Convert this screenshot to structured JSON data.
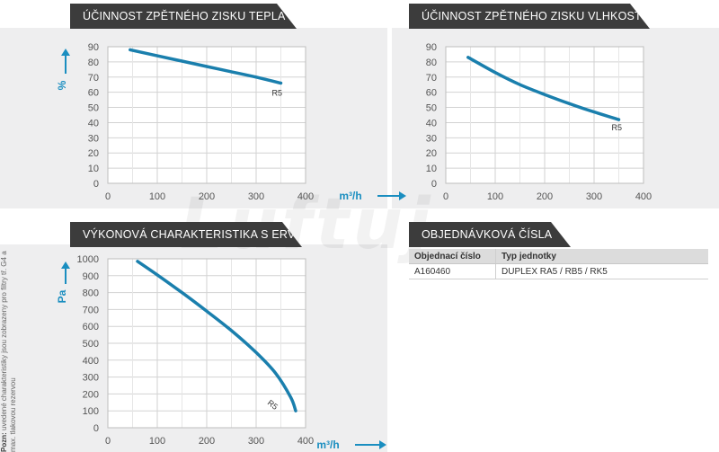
{
  "headers": {
    "heat": "ÚČINNOST ZPĚTNÉHO ZISKU TEPLA",
    "humidity": "ÚČINNOST ZPĚTNÉHO ZISKU VLHKOSTI",
    "performance": "VÝKONOVÁ CHARAKTERISTIKA S ERV",
    "order": "OBJEDNÁVKOVÁ ČÍSLA"
  },
  "watermark": "Luftuj",
  "colors": {
    "accent": "#1a8ec0",
    "header_bg": "#3c3c3c",
    "panel_bg": "#eeeeef",
    "curve": "#1a7fad"
  },
  "chart_data": [
    {
      "type": "line",
      "title": "ÚČINNOST ZPĚTNÉHO ZISKU TEPLA",
      "xlabel": "",
      "ylabel": "%",
      "xlim": [
        0,
        400
      ],
      "ylim": [
        0,
        90
      ],
      "xticks": [
        0,
        100,
        200,
        300,
        400
      ],
      "yticks": [
        0,
        10,
        20,
        30,
        40,
        50,
        60,
        70,
        80,
        90
      ],
      "grid": true,
      "series": [
        {
          "name": "R5",
          "x": [
            45,
            100,
            150,
            200,
            250,
            300,
            350
          ],
          "y": [
            88,
            84,
            80.5,
            77,
            73.5,
            70,
            66
          ]
        }
      ]
    },
    {
      "type": "line",
      "title": "ÚČINNOST ZPĚTNÉHO ZISKU VLHKOSTI",
      "xlabel": "m³/h",
      "ylabel": "",
      "xlim": [
        0,
        400
      ],
      "ylim": [
        0,
        90
      ],
      "xticks": [
        0,
        100,
        200,
        300,
        400
      ],
      "yticks": [
        0,
        10,
        20,
        30,
        40,
        50,
        60,
        70,
        80,
        90
      ],
      "grid": true,
      "series": [
        {
          "name": "R5",
          "x": [
            45,
            100,
            150,
            200,
            250,
            300,
            350
          ],
          "y": [
            83,
            73,
            65,
            58.5,
            52.5,
            47,
            42
          ]
        }
      ]
    },
    {
      "type": "line",
      "title": "VÝKONOVÁ CHARAKTERISTIKA S ERV",
      "xlabel": "m³/h",
      "ylabel": "Pa",
      "xlim": [
        0,
        400
      ],
      "ylim": [
        0,
        1000
      ],
      "xticks": [
        0,
        100,
        200,
        300,
        400
      ],
      "yticks": [
        0,
        100,
        200,
        300,
        400,
        500,
        600,
        700,
        800,
        900,
        1000
      ],
      "grid": true,
      "series": [
        {
          "name": "R5",
          "x": [
            60,
            100,
            150,
            200,
            250,
            300,
            340,
            370,
            380
          ],
          "y": [
            985,
            905,
            800,
            690,
            575,
            445,
            320,
            180,
            100
          ]
        }
      ]
    }
  ],
  "order_table": {
    "columns": [
      "Objednací číslo",
      "Typ jednotky"
    ],
    "rows": [
      [
        "A160460",
        "DUPLEX RA5 / RB5 / RK5"
      ]
    ]
  },
  "note": {
    "bold": "Pozn:",
    "text": " uvedené charakteristiky jsou zobrazeny pro filtry tř. G4 a max. tlakovou rezervou"
  }
}
